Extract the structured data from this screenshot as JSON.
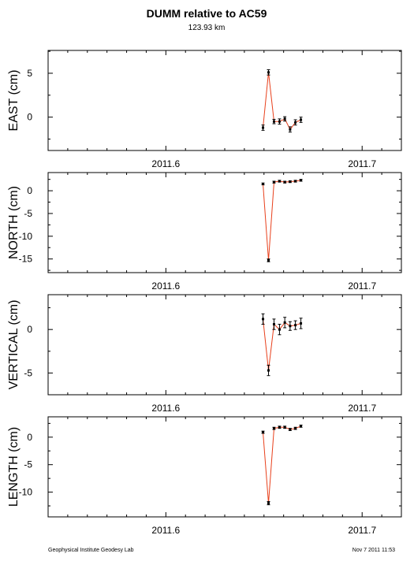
{
  "header": {
    "title": "DUMM relative to AC59",
    "subtitle": "123.93 km"
  },
  "footer": {
    "left": "Geophysical Institute Geodesy Lab",
    "right": "Nov 7 2011 11:53"
  },
  "colors": {
    "line": "#e8401c",
    "points": "#000000",
    "frame": "#000000"
  },
  "chart_data": [
    {
      "type": "line",
      "ylabel": "EAST (cm)",
      "xlim": [
        2011.54,
        2011.72
      ],
      "ylim": [
        -3.8,
        7.6
      ],
      "xticks": [
        2011.6,
        2011.7
      ],
      "xtick_labels": [
        "2011.6",
        "2011.7"
      ],
      "yticks": [
        0,
        5
      ],
      "ytick_labels": [
        "0",
        "5"
      ],
      "x": [
        2011.6495,
        2011.6523,
        2011.6551,
        2011.6579,
        2011.6606,
        2011.6633,
        2011.666,
        2011.6688
      ],
      "y": [
        -1.2,
        5.1,
        -0.5,
        -0.5,
        -0.2,
        -1.4,
        -0.6,
        -0.3
      ],
      "err": [
        0.3,
        0.3,
        0.25,
        0.3,
        0.25,
        0.3,
        0.3,
        0.3
      ],
      "grid": false
    },
    {
      "type": "line",
      "ylabel": "NORTH (cm)",
      "xlim": [
        2011.54,
        2011.72
      ],
      "ylim": [
        -18,
        4
      ],
      "xticks": [
        2011.6,
        2011.7
      ],
      "xtick_labels": [
        "2011.6",
        "2011.7"
      ],
      "yticks": [
        -15,
        -10,
        -5,
        0
      ],
      "ytick_labels": [
        "-15",
        "-10",
        "-5",
        "0"
      ],
      "x": [
        2011.6495,
        2011.6523,
        2011.6551,
        2011.6579,
        2011.6606,
        2011.6633,
        2011.666,
        2011.6688
      ],
      "y": [
        1.5,
        -15.3,
        1.9,
        2.1,
        1.9,
        2.0,
        2.1,
        2.3
      ],
      "err": [
        0.2,
        0.3,
        0.2,
        0.2,
        0.2,
        0.2,
        0.2,
        0.2
      ],
      "grid": false
    },
    {
      "type": "line",
      "ylabel": "VERTICAL (cm)",
      "xlim": [
        2011.54,
        2011.72
      ],
      "ylim": [
        -7.5,
        4.0
      ],
      "xticks": [
        2011.6,
        2011.7
      ],
      "xtick_labels": [
        "2011.6",
        "2011.7"
      ],
      "yticks": [
        -5,
        0
      ],
      "ytick_labels": [
        "-5",
        "0"
      ],
      "x": [
        2011.6495,
        2011.6523,
        2011.6551,
        2011.6579,
        2011.6606,
        2011.6633,
        2011.666,
        2011.6688
      ],
      "y": [
        1.2,
        -4.7,
        0.6,
        0.0,
        0.8,
        0.4,
        0.5,
        0.7
      ],
      "err": [
        0.6,
        0.6,
        0.6,
        0.6,
        0.6,
        0.5,
        0.5,
        0.6
      ],
      "grid": false
    },
    {
      "type": "line",
      "ylabel": "LENGTH (cm)",
      "xlim": [
        2011.54,
        2011.72
      ],
      "ylim": [
        -14.5,
        3.7
      ],
      "xticks": [
        2011.6,
        2011.7
      ],
      "xtick_labels": [
        "2011.6",
        "2011.7"
      ],
      "yticks": [
        -10,
        -5,
        0
      ],
      "ytick_labels": [
        "-10",
        "-5",
        "0"
      ],
      "x": [
        2011.6495,
        2011.6523,
        2011.6551,
        2011.6579,
        2011.6606,
        2011.6633,
        2011.666,
        2011.6688
      ],
      "y": [
        0.9,
        -12.0,
        1.6,
        1.8,
        1.8,
        1.4,
        1.6,
        2.0
      ],
      "err": [
        0.2,
        0.3,
        0.2,
        0.2,
        0.2,
        0.2,
        0.2,
        0.2
      ],
      "grid": false
    }
  ]
}
